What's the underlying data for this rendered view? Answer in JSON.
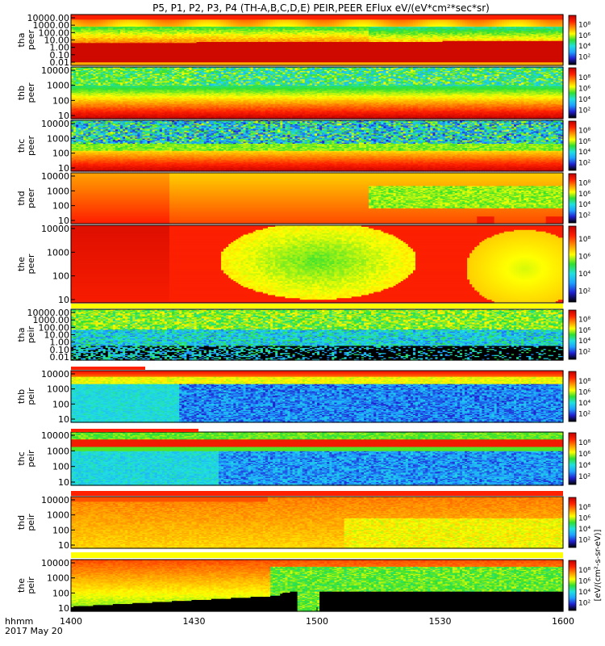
{
  "chart_data": {
    "type": "heatmap",
    "title": "P5, P1, P2, P3, P4 (TH-A,B,C,D,E) PEIR,PEER EFlux eV/(eV*cm²*sec*sr)",
    "xlabel": "hhmm",
    "date_label": "2017 May 20",
    "x_ticks": [
      "1400",
      "1430",
      "1500",
      "1530",
      "1600"
    ],
    "x_range": [
      "1400",
      "1600"
    ],
    "colorbar_label": "[eV/(cm²-s-sr-eV)]",
    "colorbar_ticks": [
      "10²",
      "10⁴",
      "10⁶",
      "10⁸"
    ],
    "colormap": [
      "#000000",
      "#2020d0",
      "#1fa0ff",
      "#20e0e0",
      "#30e030",
      "#ffff00",
      "#ff9000",
      "#ff2000",
      "#c00000"
    ],
    "panels": [
      {
        "id": "tha-peer",
        "line1": "tha",
        "line2": "peer",
        "yticks": [
          "10000.00",
          "1000.00",
          "100.00",
          "10.00",
          "1.00",
          "0.10",
          "0.01"
        ],
        "pattern": "tha_peer"
      },
      {
        "id": "thb-peer",
        "line1": "thb",
        "line2": "peer",
        "yticks": [
          "10000",
          "1000",
          "100",
          "10"
        ],
        "pattern": "thb_peer"
      },
      {
        "id": "thc-peer",
        "line1": "thc",
        "line2": "peer",
        "yticks": [
          "10000",
          "1000",
          "100",
          "10"
        ],
        "pattern": "thc_peer"
      },
      {
        "id": "thd-peer",
        "line1": "thd",
        "line2": "peer",
        "yticks": [
          "10000",
          "1000",
          "100",
          "10"
        ],
        "pattern": "thd_peer"
      },
      {
        "id": "the-peer",
        "line1": "the",
        "line2": "peer",
        "yticks": [
          "10000",
          "1000",
          "100",
          "10"
        ],
        "pattern": "the_peer"
      },
      {
        "id": "tha-peir",
        "line1": "tha",
        "line2": "peir",
        "yticks": [
          "10000.00",
          "1000.00",
          "100.00",
          "10.00",
          "1.00",
          "0.10",
          "0.01"
        ],
        "pattern": "tha_peir"
      },
      {
        "id": "thb-peir",
        "line1": "thb",
        "line2": "peir",
        "yticks": [
          "10000",
          "1000",
          "100",
          "10"
        ],
        "pattern": "thb_peir"
      },
      {
        "id": "thc-peir",
        "line1": "thc",
        "line2": "peir",
        "yticks": [
          "10000",
          "1000",
          "100",
          "10"
        ],
        "pattern": "thc_peir"
      },
      {
        "id": "thd-peir",
        "line1": "thd",
        "line2": "peir",
        "yticks": [
          "10000",
          "1000",
          "100",
          "10"
        ],
        "pattern": "thd_peir"
      },
      {
        "id": "the-peir",
        "line1": "the",
        "line2": "peir",
        "yticks": [
          "10000",
          "1000",
          "100",
          "10"
        ],
        "pattern": "the_peir"
      }
    ]
  }
}
